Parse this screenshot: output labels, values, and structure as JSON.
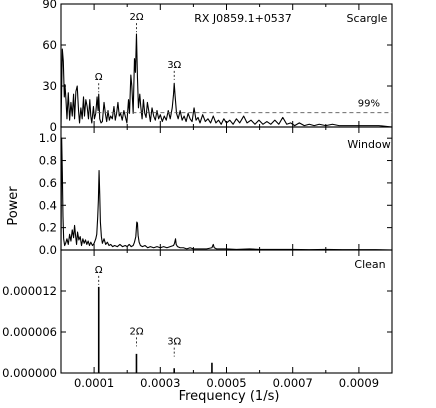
{
  "figure": {
    "xlabel": "Frequency (1/s)",
    "ylabel": "Power",
    "object_name": "RX J0859.1+0537"
  },
  "chart_data": [
    {
      "type": "line",
      "title": "Scargle",
      "annotation": "RX J0859.1+0537",
      "xlim": [
        0.0,
        0.001
      ],
      "ylim": [
        0,
        90
      ],
      "xticks": [
        0.0001,
        0.0003,
        0.0005,
        0.0007,
        0.0009
      ],
      "yticks": [
        0,
        30,
        60,
        90
      ],
      "ytick_labels": [
        "0",
        "30",
        "60",
        "90"
      ],
      "threshold": {
        "value": 10.5,
        "label": "99%"
      },
      "peak_labels": [
        {
          "label": "Ω",
          "x": 0.000114,
          "y": 24
        },
        {
          "label": "2Ω",
          "x": 0.000228,
          "y": 68
        },
        {
          "label": "3Ω",
          "x": 0.000342,
          "y": 33
        }
      ],
      "series": [
        {
          "points": [
            [
              0.0,
              0
            ],
            [
              4e-06,
              57
            ],
            [
              7e-06,
              48
            ],
            [
              1e-05,
              22
            ],
            [
              1.2e-05,
              31
            ],
            [
              1.5e-05,
              20
            ],
            [
              1.8e-05,
              6
            ],
            [
              2.2e-05,
              25
            ],
            [
              2.6e-05,
              5
            ],
            [
              3e-05,
              18
            ],
            [
              3.4e-05,
              8
            ],
            [
              3.8e-05,
              24
            ],
            [
              4.1e-05,
              6
            ],
            [
              4.5e-05,
              26
            ],
            [
              4.9e-05,
              30
            ],
            [
              5.3e-05,
              12
            ],
            [
              5.6e-05,
              3
            ],
            [
              6e-05,
              14
            ],
            [
              6.4e-05,
              6
            ],
            [
              6.8e-05,
              22
            ],
            [
              7.1e-05,
              8
            ],
            [
              7.5e-05,
              20
            ],
            [
              7.9e-05,
              15
            ],
            [
              8.3e-05,
              6
            ],
            [
              8.7e-05,
              20
            ],
            [
              9e-05,
              8
            ],
            [
              9.3e-05,
              3
            ],
            [
              9.8e-05,
              15
            ],
            [
              0.000101,
              6
            ],
            [
              0.000105,
              10
            ],
            [
              0.000109,
              22
            ],
            [
              0.000112,
              12
            ],
            [
              0.000114,
              24
            ],
            [
              0.000117,
              6
            ],
            [
              0.000121,
              3
            ],
            [
              0.000125,
              4
            ],
            [
              0.00013,
              18
            ],
            [
              0.000134,
              10
            ],
            [
              0.000138,
              4
            ],
            [
              0.000142,
              12
            ],
            [
              0.000146,
              5
            ],
            [
              0.00015,
              8
            ],
            [
              0.000155,
              6
            ],
            [
              0.00016,
              15
            ],
            [
              0.000164,
              5
            ],
            [
              0.000168,
              10
            ],
            [
              0.000172,
              18
            ],
            [
              0.000176,
              8
            ],
            [
              0.00018,
              10
            ],
            [
              0.000185,
              5
            ],
            [
              0.00019,
              12
            ],
            [
              0.000195,
              7
            ],
            [
              0.000199,
              3
            ],
            [
              0.000204,
              20
            ],
            [
              0.000207,
              10
            ],
            [
              0.000211,
              38
            ],
            [
              0.000214,
              30
            ],
            [
              0.000218,
              10
            ],
            [
              0.000222,
              50
            ],
            [
              0.000225,
              40
            ],
            [
              0.000228,
              68
            ],
            [
              0.000231,
              36
            ],
            [
              0.000234,
              14
            ],
            [
              0.000238,
              24
            ],
            [
              0.000241,
              15
            ],
            [
              0.000245,
              6
            ],
            [
              0.000249,
              20
            ],
            [
              0.000253,
              10
            ],
            [
              0.000257,
              7
            ],
            [
              0.000261,
              18
            ],
            [
              0.000265,
              12
            ],
            [
              0.00027,
              4
            ],
            [
              0.000275,
              14
            ],
            [
              0.00028,
              8
            ],
            [
              0.000285,
              5
            ],
            [
              0.00029,
              12
            ],
            [
              0.000295,
              6
            ],
            [
              0.0003,
              9
            ],
            [
              0.000306,
              4
            ],
            [
              0.000312,
              8
            ],
            [
              0.000318,
              5
            ],
            [
              0.000324,
              12
            ],
            [
              0.00033,
              6
            ],
            [
              0.000336,
              14
            ],
            [
              0.00034,
              24
            ],
            [
              0.000342,
              32
            ],
            [
              0.000345,
              22
            ],
            [
              0.000349,
              10
            ],
            [
              0.000354,
              6
            ],
            [
              0.00036,
              12
            ],
            [
              0.000366,
              5
            ],
            [
              0.000372,
              8
            ],
            [
              0.000378,
              4
            ],
            [
              0.000384,
              10
            ],
            [
              0.00039,
              6
            ],
            [
              0.000396,
              4
            ],
            [
              0.000402,
              14
            ],
            [
              0.000408,
              5
            ],
            [
              0.000414,
              7
            ],
            [
              0.00042,
              3
            ],
            [
              0.000428,
              9
            ],
            [
              0.000436,
              4
            ],
            [
              0.000444,
              6
            ],
            [
              0.000452,
              3
            ],
            [
              0.00046,
              8
            ],
            [
              0.000468,
              3
            ],
            [
              0.000476,
              5
            ],
            [
              0.000484,
              2
            ],
            [
              0.000492,
              6
            ],
            [
              0.0005,
              3
            ],
            [
              0.00051,
              5
            ],
            [
              0.00052,
              2
            ],
            [
              0.00053,
              6
            ],
            [
              0.00054,
              3
            ],
            [
              0.000552,
              8
            ],
            [
              0.000562,
              3
            ],
            [
              0.000574,
              5
            ],
            [
              0.000586,
              2
            ],
            [
              0.000598,
              5
            ],
            [
              0.00061,
              2
            ],
            [
              0.000622,
              4
            ],
            [
              0.000634,
              2
            ],
            [
              0.000646,
              5
            ],
            [
              0.000658,
              2
            ],
            [
              0.00067,
              7
            ],
            [
              0.000682,
              2
            ],
            [
              0.000694,
              3
            ],
            [
              0.000706,
              1
            ],
            [
              0.00072,
              3
            ],
            [
              0.000735,
              1
            ],
            [
              0.00075,
              2
            ],
            [
              0.000765,
              1
            ],
            [
              0.00078,
              2
            ],
            [
              0.0008,
              1
            ],
            [
              0.00082,
              2
            ],
            [
              0.00084,
              1
            ],
            [
              0.00086,
              1
            ],
            [
              0.00088,
              1
            ],
            [
              0.0009,
              1
            ],
            [
              0.00093,
              1
            ],
            [
              0.00096,
              1
            ],
            [
              0.001,
              0
            ]
          ]
        }
      ]
    },
    {
      "type": "line",
      "title": "Window",
      "xlim": [
        0.0,
        0.001
      ],
      "ylim": [
        0,
        1.1
      ],
      "xticks": [
        0.0001,
        0.0003,
        0.0005,
        0.0007,
        0.0009
      ],
      "yticks": [
        0,
        0.2,
        0.4,
        0.6,
        0.8,
        1.0
      ],
      "ytick_labels": [
        "0.0",
        "0.2",
        "0.4",
        "0.6",
        "0.8",
        "1.0"
      ],
      "series": [
        {
          "points": [
            [
              0.0,
              0
            ],
            [
              2e-06,
              1.0
            ],
            [
              4e-06,
              0.7
            ],
            [
              6e-06,
              0.3
            ],
            [
              8e-06,
              0.1
            ],
            [
              1.1e-05,
              0.04
            ],
            [
              1.4e-05,
              0.06
            ],
            [
              1.8e-05,
              0.1
            ],
            [
              2.2e-05,
              0.05
            ],
            [
              2.6e-05,
              0.14
            ],
            [
              3e-05,
              0.08
            ],
            [
              3.4e-05,
              0.18
            ],
            [
              3.8e-05,
              0.11
            ],
            [
              4.1e-05,
              0.22
            ],
            [
              4.4e-05,
              0.13
            ],
            [
              4.7e-05,
              0.05
            ],
            [
              5e-05,
              0.16
            ],
            [
              5.4e-05,
              0.09
            ],
            [
              5.8e-05,
              0.12
            ],
            [
              6.2e-05,
              0.04
            ],
            [
              6.6e-05,
              0.1
            ],
            [
              7e-05,
              0.06
            ],
            [
              7.4e-05,
              0.09
            ],
            [
              7.8e-05,
              0.05
            ],
            [
              8.2e-05,
              0.08
            ],
            [
              8.6e-05,
              0.04
            ],
            [
              9e-05,
              0.07
            ],
            [
              9.5e-05,
              0.04
            ],
            [
              0.0001,
              0.06
            ],
            [
              0.000105,
              0.1
            ],
            [
              0.000108,
              0.14
            ],
            [
              0.000111,
              0.3
            ],
            [
              0.000113,
              0.45
            ],
            [
              0.000115,
              0.71
            ],
            [
              0.000117,
              0.5
            ],
            [
              0.000119,
              0.25
            ],
            [
              0.000122,
              0.12
            ],
            [
              0.000125,
              0.06
            ],
            [
              0.00013,
              0.1
            ],
            [
              0.000135,
              0.05
            ],
            [
              0.00014,
              0.07
            ],
            [
              0.000145,
              0.04
            ],
            [
              0.00015,
              0.05
            ],
            [
              0.000156,
              0.03
            ],
            [
              0.000162,
              0.04
            ],
            [
              0.00017,
              0.03
            ],
            [
              0.000178,
              0.05
            ],
            [
              0.000186,
              0.03
            ],
            [
              0.000194,
              0.04
            ],
            [
              0.0002,
              0.03
            ],
            [
              0.000206,
              0.05
            ],
            [
              0.000212,
              0.03
            ],
            [
              0.000218,
              0.04
            ],
            [
              0.000222,
              0.07
            ],
            [
              0.000226,
              0.12
            ],
            [
              0.000229,
              0.25
            ],
            [
              0.000231,
              0.24
            ],
            [
              0.000233,
              0.13
            ],
            [
              0.000236,
              0.07
            ],
            [
              0.00024,
              0.04
            ],
            [
              0.000246,
              0.03
            ],
            [
              0.000254,
              0.04
            ],
            [
              0.000262,
              0.02
            ],
            [
              0.00027,
              0.03
            ],
            [
              0.00028,
              0.02
            ],
            [
              0.00029,
              0.03
            ],
            [
              0.0003,
              0.02
            ],
            [
              0.00031,
              0.03
            ],
            [
              0.00032,
              0.02
            ],
            [
              0.00033,
              0.03
            ],
            [
              0.00034,
              0.04
            ],
            [
              0.000343,
              0.06
            ],
            [
              0.000346,
              0.1
            ],
            [
              0.000348,
              0.05
            ],
            [
              0.000352,
              0.03
            ],
            [
              0.00036,
              0.02
            ],
            [
              0.00037,
              0.02
            ],
            [
              0.00038,
              0.01
            ],
            [
              0.00039,
              0.02
            ],
            [
              0.0004,
              0.01
            ],
            [
              0.00042,
              0.01
            ],
            [
              0.00044,
              0.01
            ],
            [
              0.000456,
              0.02
            ],
            [
              0.00046,
              0.05
            ],
            [
              0.000463,
              0.02
            ],
            [
              0.00047,
              0.01
            ],
            [
              0.0005,
              0.01
            ],
            [
              0.00053,
              0.005
            ],
            [
              0.00057,
              0.01
            ],
            [
              0.0006,
              0.005
            ],
            [
              0.00065,
              0.005
            ],
            [
              0.0007,
              0.005
            ],
            [
              0.00075,
              0.003
            ],
            [
              0.0008,
              0.005
            ],
            [
              0.00085,
              0.003
            ],
            [
              0.0009,
              0.003
            ],
            [
              0.00095,
              0.003
            ],
            [
              0.001,
              0
            ]
          ]
        }
      ]
    },
    {
      "type": "line",
      "title": "Clean",
      "xlim": [
        0.0,
        0.001
      ],
      "ylim": [
        0,
        1.8e-05
      ],
      "xticks": [
        0.0001,
        0.0003,
        0.0005,
        0.0007,
        0.0009
      ],
      "xtick_labels": [
        "0.0001",
        "0.0003",
        "0.0005",
        "0.0007",
        "0.0009"
      ],
      "yticks": [
        0,
        6e-06,
        1.2e-05
      ],
      "ytick_labels": [
        "0.000000",
        "0.000006",
        "0.000012"
      ],
      "peak_labels": [
        {
          "label": "Ω",
          "x": 0.000114,
          "y": 1.26e-05
        },
        {
          "label": "2Ω",
          "x": 0.000228,
          "y": 3.6e-06
        },
        {
          "label": "3Ω",
          "x": 0.000342,
          "y": 2.1e-06
        }
      ],
      "series": [
        {
          "sticks": [
            {
              "x": 0.000114,
              "y": 1.26e-05
            },
            {
              "x": 0.000228,
              "y": 2.8e-06
            },
            {
              "x": 0.000342,
              "y": 7e-07
            },
            {
              "x": 0.000456,
              "y": 1.5e-06
            }
          ]
        }
      ]
    }
  ]
}
